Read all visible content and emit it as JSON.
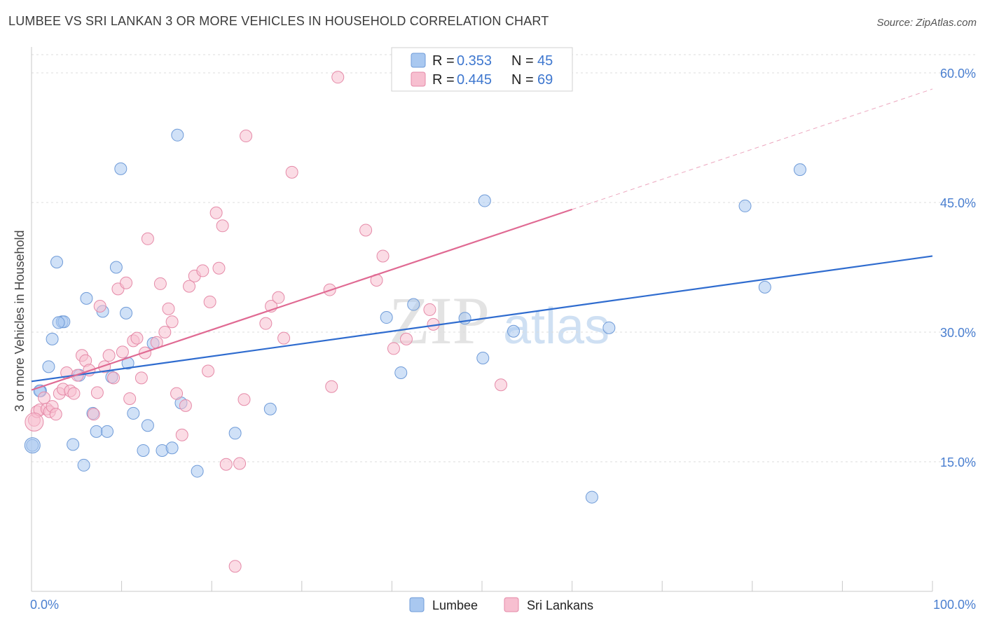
{
  "chart_data": {
    "type": "scatter",
    "title": "LUMBEE VS SRI LANKAN 3 OR MORE VEHICLES IN HOUSEHOLD CORRELATION CHART",
    "source": "Source: ZipAtlas.com",
    "xlabel": "",
    "ylabel": "3 or more Vehicles in Household",
    "xlim": [
      0,
      100
    ],
    "ylim": [
      0,
      63
    ],
    "x_tick_labels": [
      "0.0%",
      "100.0%"
    ],
    "y_ticks": [
      15,
      30,
      45,
      60
    ],
    "y_tick_labels": [
      "15.0%",
      "30.0%",
      "45.0%",
      "60.0%"
    ],
    "grid": true,
    "watermark": {
      "text1": "ZIP",
      "text2": "atlas"
    },
    "legend_position": "top-center",
    "bottom_legend": [
      "Lumbee",
      "Sri Lankans"
    ],
    "series": [
      {
        "name": "Lumbee",
        "color": "#a9c8f0",
        "edge_color": "#6f9bd8",
        "line_color": "#2f6ccf",
        "R": "0.353",
        "N": "45",
        "r_label": "R =",
        "n_label": "N =",
        "trend": {
          "x0": 0,
          "y0": 24.3,
          "x1": 100,
          "y1": 38.8,
          "dashed_to": 100
        },
        "points": [
          [
            0.1,
            16.9
          ],
          [
            1.0,
            23.2
          ],
          [
            1.9,
            26.0
          ],
          [
            2.3,
            29.2
          ],
          [
            2.8,
            38.1
          ],
          [
            3.4,
            31.2
          ],
          [
            3.6,
            31.2
          ],
          [
            4.6,
            17.0
          ],
          [
            5.3,
            25.0
          ],
          [
            5.8,
            14.6
          ],
          [
            6.1,
            33.9
          ],
          [
            6.8,
            20.6
          ],
          [
            7.2,
            18.5
          ],
          [
            7.9,
            32.4
          ],
          [
            8.4,
            18.5
          ],
          [
            8.9,
            24.8
          ],
          [
            9.4,
            37.5
          ],
          [
            9.9,
            48.9
          ],
          [
            10.5,
            32.2
          ],
          [
            10.7,
            26.4
          ],
          [
            11.3,
            20.6
          ],
          [
            12.4,
            16.3
          ],
          [
            12.9,
            19.2
          ],
          [
            13.5,
            28.7
          ],
          [
            14.5,
            16.3
          ],
          [
            15.6,
            16.6
          ],
          [
            16.2,
            52.8
          ],
          [
            16.6,
            21.8
          ],
          [
            18.4,
            13.9
          ],
          [
            22.6,
            18.3
          ],
          [
            26.5,
            21.1
          ],
          [
            39.4,
            31.7
          ],
          [
            41.0,
            25.3
          ],
          [
            42.4,
            33.2
          ],
          [
            48.1,
            31.6
          ],
          [
            50.1,
            27.0
          ],
          [
            50.3,
            45.2
          ],
          [
            53.5,
            30.1
          ],
          [
            62.2,
            10.9
          ],
          [
            64.1,
            30.5
          ],
          [
            79.2,
            44.6
          ],
          [
            81.4,
            35.2
          ],
          [
            85.3,
            48.8
          ],
          [
            0.9,
            23.2
          ],
          [
            3.0,
            31.1
          ]
        ]
      },
      {
        "name": "Sri Lankans",
        "color": "#f7bfd0",
        "edge_color": "#e58aa8",
        "line_color": "#e06a93",
        "R": "0.445",
        "N": "69",
        "r_label": "R =",
        "n_label": "N =",
        "trend": {
          "x0": 0,
          "y0": 23.3,
          "x1": 60,
          "y1": 44.2,
          "dashed_to": 100
        },
        "points": [
          [
            0.3,
            19.8
          ],
          [
            0.6,
            20.8
          ],
          [
            0.9,
            21.0
          ],
          [
            1.4,
            22.4
          ],
          [
            1.7,
            21.1
          ],
          [
            2.0,
            20.8
          ],
          [
            2.3,
            21.4
          ],
          [
            2.7,
            20.5
          ],
          [
            3.1,
            22.9
          ],
          [
            3.5,
            23.4
          ],
          [
            3.9,
            25.3
          ],
          [
            4.3,
            23.2
          ],
          [
            4.7,
            22.9
          ],
          [
            5.1,
            25.0
          ],
          [
            5.6,
            27.3
          ],
          [
            6.0,
            26.7
          ],
          [
            6.4,
            25.6
          ],
          [
            6.9,
            20.5
          ],
          [
            7.3,
            23.0
          ],
          [
            7.6,
            33.0
          ],
          [
            8.1,
            26.0
          ],
          [
            8.6,
            27.3
          ],
          [
            9.1,
            24.7
          ],
          [
            9.6,
            35.0
          ],
          [
            10.1,
            27.7
          ],
          [
            10.5,
            35.7
          ],
          [
            10.9,
            22.3
          ],
          [
            11.3,
            29.0
          ],
          [
            11.7,
            29.3
          ],
          [
            12.2,
            24.7
          ],
          [
            12.6,
            27.6
          ],
          [
            12.9,
            40.8
          ],
          [
            13.9,
            28.8
          ],
          [
            14.3,
            35.6
          ],
          [
            14.8,
            30.0
          ],
          [
            15.2,
            32.7
          ],
          [
            15.6,
            31.2
          ],
          [
            16.1,
            22.9
          ],
          [
            16.7,
            18.1
          ],
          [
            17.1,
            21.5
          ],
          [
            17.5,
            35.3
          ],
          [
            18.1,
            36.5
          ],
          [
            19.0,
            37.1
          ],
          [
            19.6,
            25.5
          ],
          [
            19.8,
            33.5
          ],
          [
            20.5,
            43.8
          ],
          [
            20.8,
            37.4
          ],
          [
            21.2,
            42.3
          ],
          [
            21.6,
            14.7
          ],
          [
            22.6,
            2.9
          ],
          [
            23.1,
            14.8
          ],
          [
            23.6,
            22.2
          ],
          [
            23.8,
            52.7
          ],
          [
            26.0,
            31.0
          ],
          [
            26.6,
            33.0
          ],
          [
            27.4,
            34.0
          ],
          [
            28.0,
            29.3
          ],
          [
            28.9,
            48.5
          ],
          [
            33.1,
            34.9
          ],
          [
            33.3,
            23.7
          ],
          [
            34.0,
            59.5
          ],
          [
            37.1,
            41.8
          ],
          [
            38.3,
            36.0
          ],
          [
            39.0,
            38.8
          ],
          [
            40.2,
            28.1
          ],
          [
            44.2,
            32.6
          ],
          [
            44.6,
            30.9
          ],
          [
            52.1,
            23.9
          ],
          [
            41.6,
            29.2
          ]
        ]
      }
    ]
  }
}
